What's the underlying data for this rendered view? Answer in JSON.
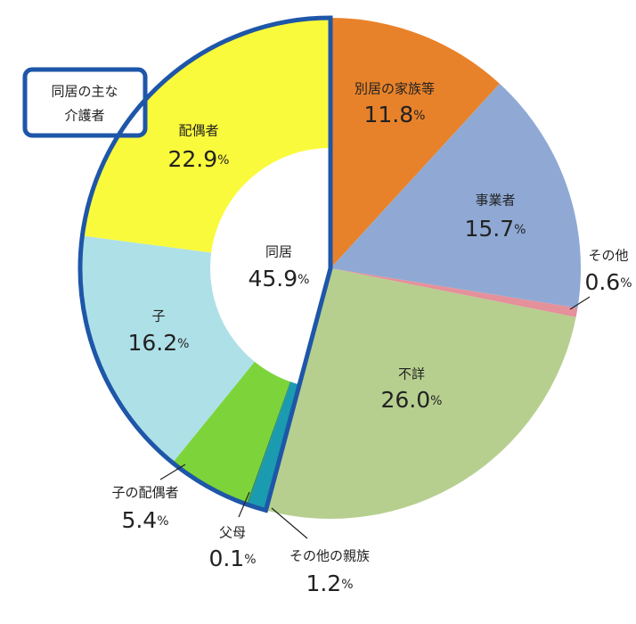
{
  "chart_data": {
    "type": "donut",
    "categories": [
      "別居の家族等",
      "事業者",
      "その他",
      "不詳",
      "その他の親族",
      "父母",
      "子の配偶者",
      "子",
      "配偶者"
    ],
    "values": [
      11.8,
      15.7,
      0.6,
      26.0,
      1.2,
      0.1,
      5.4,
      16.2,
      22.9
    ],
    "value_labels": [
      "11.8",
      "15.7",
      "0.6",
      "26.0",
      "1.2",
      "0.1",
      "5.4",
      "16.2",
      "22.9"
    ],
    "unit": "%",
    "colors": [
      "#e8822a",
      "#8fa9d4",
      "#e4919b",
      "#b6cf8f",
      "#1a9bb0",
      "#2e8b57",
      "#7dd43a",
      "#aee0e8",
      "#fafa3c"
    ],
    "group_label": "同居",
    "group_value_label": "45.9",
    "box_label": [
      "同居の主な",
      "介護者"
    ]
  }
}
